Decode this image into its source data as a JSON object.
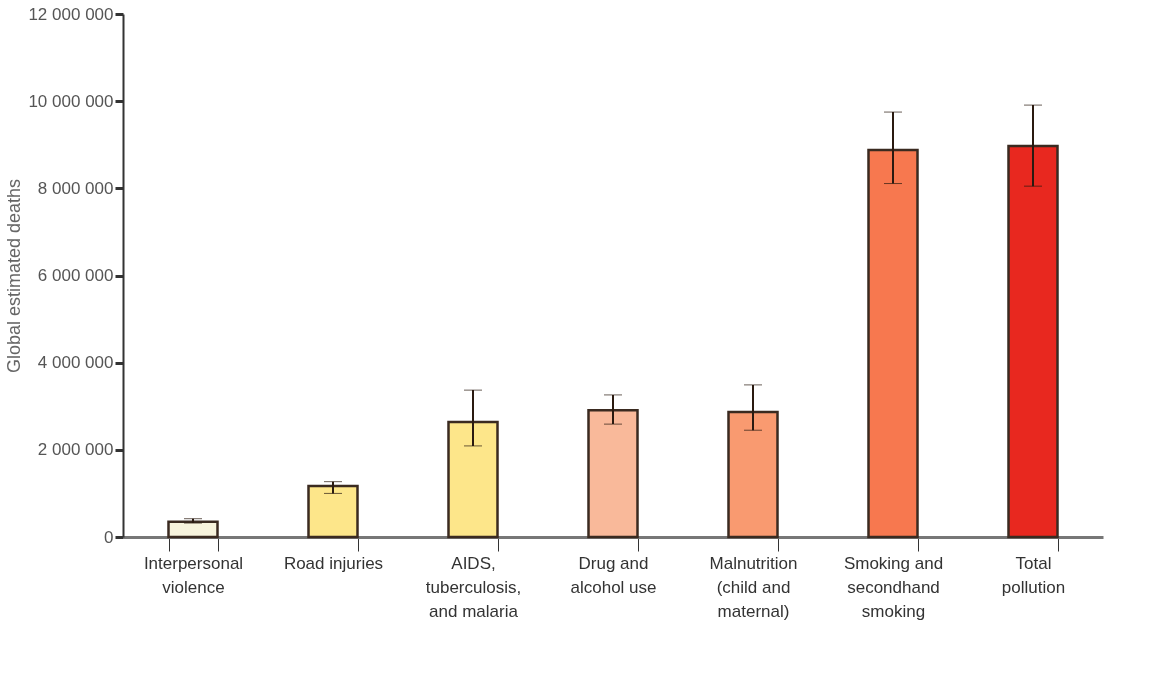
{
  "chart_data": {
    "type": "bar",
    "ylabel": "Global estimated deaths",
    "categories": [
      "Interpersonal violence",
      "Road injuries",
      "AIDS, tuberculosis, and malaria",
      "Drug and alcohol use",
      "Malnutrition (child and maternal)",
      "Smoking and secondhand smoking",
      "Total pollution"
    ],
    "values": [
      350000,
      1170000,
      2640000,
      2910000,
      2870000,
      8880000,
      8970000
    ],
    "errors": [
      [
        320000,
        420000
      ],
      [
        1000000,
        1270000
      ],
      [
        2090000,
        3370000
      ],
      [
        2590000,
        3260000
      ],
      [
        2450000,
        3490000
      ],
      [
        8110000,
        9750000
      ],
      [
        8050000,
        9910000
      ]
    ],
    "colors": [
      "#f7f3dc",
      "#fde68a",
      "#fde68a",
      "#f9b99a",
      "#f99a70",
      "#f7784f",
      "#e8281f"
    ],
    "ylim": [
      0,
      12000000
    ],
    "yticks": [
      0,
      {
        "value": 2000000,
        "label": "2 000 000"
      },
      {
        "value": 4000000,
        "label": "4 000 000"
      },
      {
        "value": 6000000,
        "label": "6 000 000"
      },
      {
        "value": 8000000,
        "label": "8 000 000"
      },
      {
        "value": 10000000,
        "label": "10 000 000"
      },
      {
        "value": 12000000,
        "label": "12 000 000"
      }
    ],
    "grid": false
  }
}
